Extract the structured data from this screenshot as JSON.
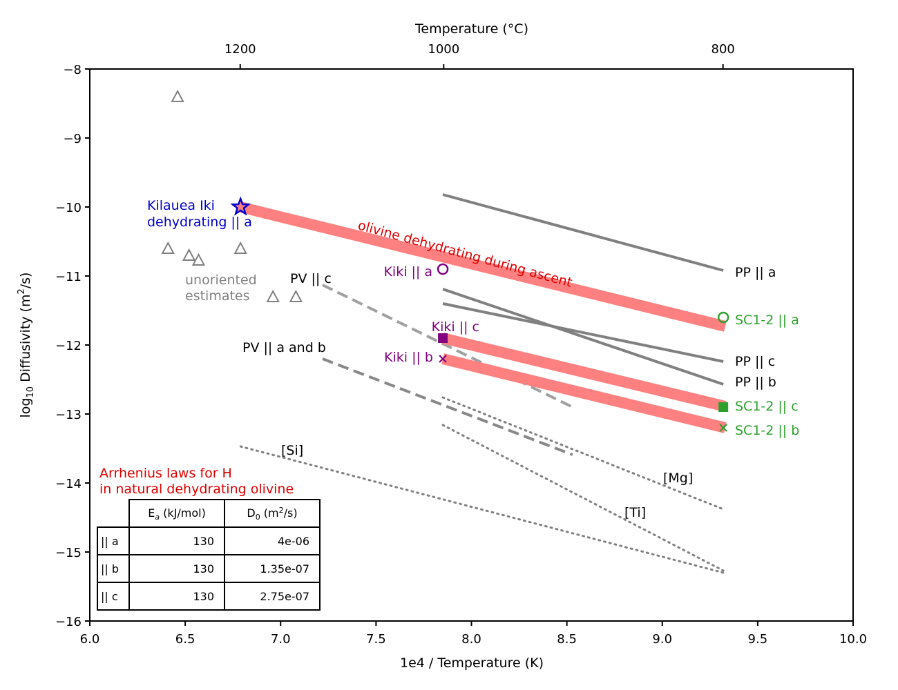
{
  "chart_data": {
    "type": "line",
    "title": "",
    "xlabel": "1e4 / Temperature (K)",
    "ylabel": "log10 Diffusivity (m2/s)",
    "top_xlabel": "Temperature (°C)",
    "xlim": [
      6.0,
      10.0
    ],
    "ylim": [
      -16,
      -8
    ],
    "xticks": [
      "6.0",
      "6.5",
      "7.0",
      "7.5",
      "8.0",
      "8.5",
      "9.0",
      "9.5",
      "10.0"
    ],
    "yticks": [
      "−8",
      "−9",
      "−10",
      "−11",
      "−12",
      "−13",
      "−14",
      "−15",
      "−16"
    ],
    "top_ticks": [
      {
        "celsius": 1200,
        "label": "1200"
      },
      {
        "celsius": 1000,
        "label": "1000"
      },
      {
        "celsius": 800,
        "label": "800"
      }
    ],
    "grid": false,
    "colors": {
      "dehydrating": "#ff8080",
      "pp": "#808080",
      "pv": "#a0a0a0",
      "kilauea": "#0000cc",
      "kiki": "#800080",
      "sc": "#2ca02c",
      "label_red": "#dd0000",
      "unoriented": "#808080"
    },
    "dehydrating_lines": [
      {
        "name": "|| a",
        "x": [
          6.79,
          9.33
        ],
        "y": [
          -10.0,
          -11.73
        ]
      },
      {
        "name": "|| c",
        "x": [
          7.85,
          9.33
        ],
        "y": [
          -11.9,
          -12.89
        ]
      },
      {
        "name": "|| b",
        "x": [
          7.85,
          9.33
        ],
        "y": [
          -12.2,
          -13.2
        ]
      }
    ],
    "pp_lines": [
      {
        "label": "PP || a",
        "x": [
          7.85,
          9.32
        ],
        "y": [
          -9.82,
          -10.92
        ]
      },
      {
        "label": "PP || c",
        "x": [
          7.85,
          9.32
        ],
        "y": [
          -11.4,
          -12.24
        ]
      },
      {
        "label": "PP || b",
        "x": [
          7.85,
          9.32
        ],
        "y": [
          -11.19,
          -12.57
        ]
      }
    ],
    "pv_lines": [
      {
        "label": "PV || c",
        "x": [
          7.22,
          8.53
        ],
        "y": [
          -11.13,
          -12.9
        ]
      },
      {
        "label": "PV || a and b",
        "x": [
          7.22,
          8.53
        ],
        "y": [
          -12.2,
          -13.59
        ]
      }
    ],
    "dotted_lines": [
      {
        "label": "[Si]",
        "x": [
          6.79,
          9.32
        ],
        "y": [
          -13.47,
          -15.3
        ]
      },
      {
        "label": "[Mg]",
        "x": [
          7.85,
          9.32
        ],
        "y": [
          -12.76,
          -14.38
        ]
      },
      {
        "label": "[Ti]",
        "x": [
          7.85,
          9.32
        ],
        "y": [
          -13.16,
          -15.27
        ]
      }
    ],
    "unoriented_points": {
      "x": [
        6.46,
        6.41,
        6.52,
        6.57,
        6.79,
        6.96,
        7.08
      ],
      "y": [
        -8.4,
        -10.6,
        -10.7,
        -10.77,
        -10.6,
        -11.3,
        -11.3
      ]
    },
    "kilauea_point": {
      "x": 6.79,
      "y": -10.0
    },
    "kiki_points": [
      {
        "label": "Kiki || a",
        "marker": "open-circle",
        "x": 7.85,
        "y": -10.9
      },
      {
        "label": "Kiki || c",
        "marker": "square",
        "x": 7.85,
        "y": -11.9
      },
      {
        "label": "Kiki || b",
        "marker": "x",
        "x": 7.85,
        "y": -12.2
      }
    ],
    "sc_points": [
      {
        "label": "SC1-2 || a",
        "marker": "open-circle",
        "x": 9.32,
        "y": -11.6
      },
      {
        "label": "SC1-2 || c",
        "marker": "square",
        "x": 9.32,
        "y": -12.9
      },
      {
        "label": "SC1-2 || b",
        "marker": "x",
        "x": 9.32,
        "y": -13.2
      }
    ],
    "annotations": {
      "kilauea_line1": "Kilauea Iki",
      "kilauea_line2": "dehydrating || a",
      "unoriented_line1": "unoriented",
      "unoriented_line2": "estimates",
      "ascent": "olivine dehydrating during ascent",
      "arrhenius_line1": "Arrhenius laws for H",
      "arrhenius_line2": "in natural dehydrating olivine"
    },
    "table": {
      "headers": [
        "",
        "Ea (kJ/mol)",
        "D0 (m2/s)"
      ],
      "rows": [
        [
          "|| a",
          "130",
          "4e-06"
        ],
        [
          "|| b",
          "130",
          "1.35e-07"
        ],
        [
          "|| c",
          "130",
          "2.75e-07"
        ]
      ]
    }
  }
}
